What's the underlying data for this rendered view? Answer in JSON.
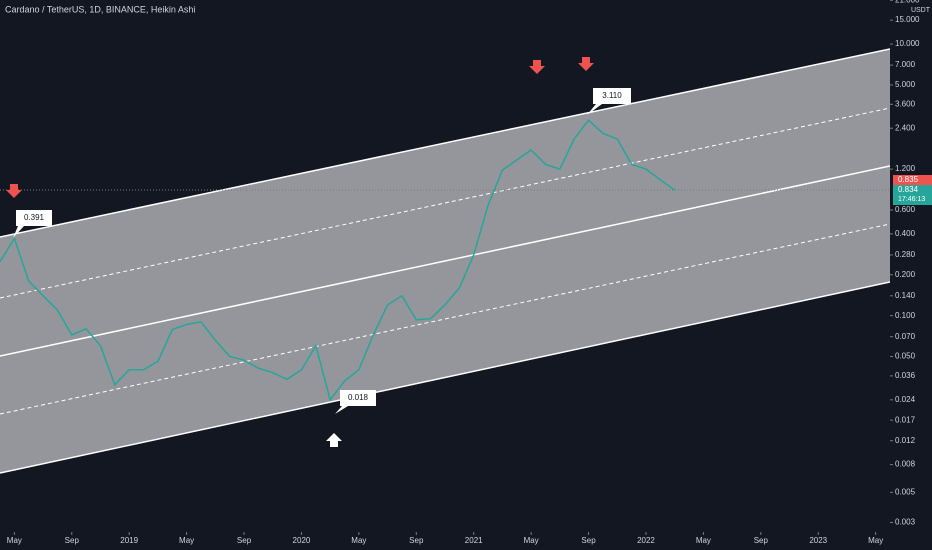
{
  "chart_data": {
    "type": "line",
    "title": "Cardano / TetherUS, 1D, BINANCE, Heikin Ashi",
    "y_unit": "USDT",
    "log_scale": true,
    "grid": false,
    "x": [
      "2018-04",
      "2018-05",
      "2018-06",
      "2018-07",
      "2018-08",
      "2018-09",
      "2018-10",
      "2018-11",
      "2018-12",
      "2019-01",
      "2019-02",
      "2019-03",
      "2019-04",
      "2019-05",
      "2019-06",
      "2019-07",
      "2019-08",
      "2019-09",
      "2019-10",
      "2019-11",
      "2019-12",
      "2020-01",
      "2020-02",
      "2020-03",
      "2020-04",
      "2020-05",
      "2020-06",
      "2020-07",
      "2020-08",
      "2020-09",
      "2020-10",
      "2020-11",
      "2020-12",
      "2021-01",
      "2021-02",
      "2021-03",
      "2021-04",
      "2021-05",
      "2021-06",
      "2021-07",
      "2021-08",
      "2021-09",
      "2021-10",
      "2021-11",
      "2021-12",
      "2022-01",
      "2022-02",
      "2022-03"
    ],
    "series": [
      {
        "color": "#26a69a",
        "values": [
          0.25,
          0.37,
          0.18,
          0.14,
          0.11,
          0.072,
          0.08,
          0.06,
          0.031,
          0.04,
          0.04,
          0.046,
          0.079,
          0.086,
          0.09,
          0.066,
          0.05,
          0.047,
          0.041,
          0.038,
          0.034,
          0.04,
          0.06,
          0.024,
          0.033,
          0.04,
          0.072,
          0.12,
          0.14,
          0.093,
          0.095,
          0.12,
          0.16,
          0.28,
          0.65,
          1.18,
          1.4,
          1.66,
          1.3,
          1.2,
          2.0,
          2.75,
          2.2,
          2.0,
          1.3,
          1.2,
          1.0,
          0.84
        ]
      }
    ],
    "xlim": [
      "2018-04",
      "2023-06"
    ],
    "xticks": [
      {
        "value": "2018-05",
        "label": "May"
      },
      {
        "value": "2018-09",
        "label": "Sep"
      },
      {
        "value": "2019-01",
        "label": "2019"
      },
      {
        "value": "2019-05",
        "label": "May"
      },
      {
        "value": "2019-09",
        "label": "Sep"
      },
      {
        "value": "2020-01",
        "label": "2020"
      },
      {
        "value": "2020-05",
        "label": "May"
      },
      {
        "value": "2020-09",
        "label": "Sep"
      },
      {
        "value": "2021-01",
        "label": "2021"
      },
      {
        "value": "2021-05",
        "label": "May"
      },
      {
        "value": "2021-09",
        "label": "Sep"
      },
      {
        "value": "2022-01",
        "label": "2022"
      },
      {
        "value": "2022-05",
        "label": "May"
      },
      {
        "value": "2022-09",
        "label": "Sep"
      },
      {
        "value": "2023-01",
        "label": "2023"
      },
      {
        "value": "2023-05",
        "label": "May"
      }
    ],
    "ylim": [
      0.00264,
      21.1
    ],
    "yticks": [
      {
        "value": 21,
        "label": "21.000"
      },
      {
        "value": 15,
        "label": "15.000"
      },
      {
        "value": 10,
        "label": "10.000"
      },
      {
        "value": 7,
        "label": "7.000"
      },
      {
        "value": 5,
        "label": "5.000"
      },
      {
        "value": 3.6,
        "label": "3.600"
      },
      {
        "value": 2.4,
        "label": "2.400"
      },
      {
        "value": 1.2,
        "label": "1.200"
      },
      {
        "value": 0.6,
        "label": "0.600"
      },
      {
        "value": 0.4,
        "label": "0.400"
      },
      {
        "value": 0.28,
        "label": "0.280"
      },
      {
        "value": 0.2,
        "label": "0.200"
      },
      {
        "value": 0.14,
        "label": "0.140"
      },
      {
        "value": 0.1,
        "label": "0.100"
      },
      {
        "value": 0.07,
        "label": "0.070"
      },
      {
        "value": 0.05,
        "label": "0.050"
      },
      {
        "value": 0.036,
        "label": "0.036"
      },
      {
        "value": 0.024,
        "label": "0.024"
      },
      {
        "value": 0.017,
        "label": "0.017"
      },
      {
        "value": 0.012,
        "label": "0.012"
      },
      {
        "value": 0.008,
        "label": "0.008"
      },
      {
        "value": 0.005,
        "label": "0.005"
      },
      {
        "value": 0.003,
        "label": "0.003"
      }
    ],
    "annotations": [
      "0.391",
      "3.110",
      "0.018"
    ],
    "price_labels": {
      "previous": "0.835",
      "last": "0.834",
      "countdown": "17:46:13"
    }
  }
}
